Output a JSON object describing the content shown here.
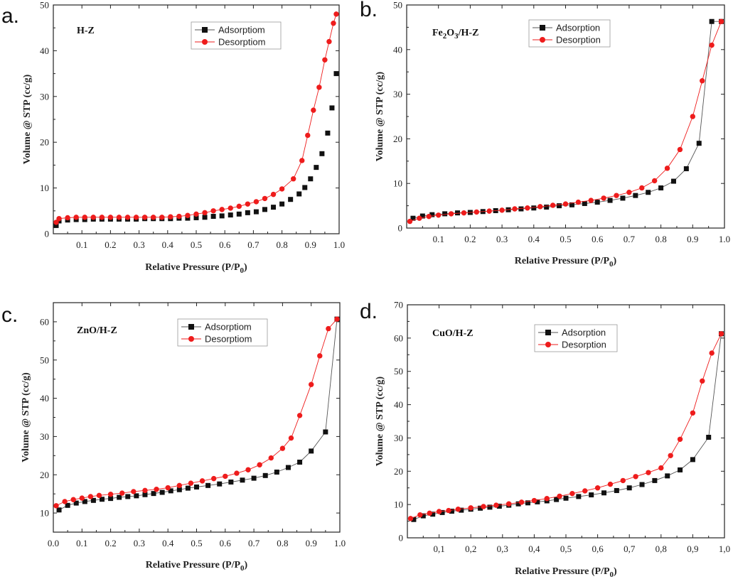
{
  "colors": {
    "adsorption": "#111111",
    "adsorption_line": "#555555",
    "desorption": "#ee1c1c",
    "axis": "#222222"
  },
  "chart_data": [
    {
      "type": "scatter",
      "panel_letter": "a.",
      "sample_label": "H-Z",
      "xlabel": "Relative Pressure (P/P",
      "xlabel_subscript": "0",
      "xlabel_close": ")",
      "ylabel": "Volume @ STP (cc/g)",
      "xlim": [
        0.0,
        1.0
      ],
      "ylim": [
        0,
        50
      ],
      "xticks": [
        "0.1",
        "0.2",
        "0.3",
        "0.4",
        "0.5",
        "0.6",
        "0.7",
        "0.8",
        "0.9",
        "1.0"
      ],
      "xtick_values": [
        0.1,
        0.2,
        0.3,
        0.4,
        0.5,
        0.6,
        0.7,
        0.8,
        0.9,
        1.0
      ],
      "yticks": [
        "0",
        "10",
        "20",
        "30",
        "40",
        "50"
      ],
      "ytick_values": [
        0,
        10,
        20,
        30,
        40,
        50
      ],
      "legend": [
        "Adsorptiom",
        "Desorptiom"
      ],
      "series": [
        {
          "name": "Adsorptiom",
          "marker": "square",
          "connected": false,
          "x": [
            0.01,
            0.02,
            0.05,
            0.08,
            0.11,
            0.14,
            0.17,
            0.2,
            0.23,
            0.26,
            0.29,
            0.32,
            0.35,
            0.38,
            0.41,
            0.44,
            0.47,
            0.5,
            0.53,
            0.56,
            0.59,
            0.62,
            0.65,
            0.68,
            0.71,
            0.74,
            0.77,
            0.8,
            0.83,
            0.86,
            0.88,
            0.9,
            0.92,
            0.94,
            0.96,
            0.975,
            0.99
          ],
          "y": [
            1.8,
            2.8,
            3.0,
            3.1,
            3.1,
            3.2,
            3.2,
            3.2,
            3.2,
            3.2,
            3.2,
            3.3,
            3.3,
            3.3,
            3.3,
            3.4,
            3.4,
            3.5,
            3.6,
            3.8,
            3.9,
            4.1,
            4.3,
            4.6,
            4.8,
            5.3,
            5.8,
            6.5,
            7.5,
            8.7,
            10.1,
            12.0,
            14.5,
            17.5,
            22.0,
            27.5,
            35.0
          ]
        },
        {
          "name": "Desorptiom",
          "marker": "circle",
          "connected": true,
          "x": [
            0.01,
            0.02,
            0.05,
            0.08,
            0.11,
            0.14,
            0.17,
            0.2,
            0.23,
            0.26,
            0.29,
            0.32,
            0.35,
            0.38,
            0.41,
            0.44,
            0.47,
            0.5,
            0.53,
            0.56,
            0.59,
            0.62,
            0.65,
            0.68,
            0.71,
            0.74,
            0.77,
            0.8,
            0.84,
            0.87,
            0.89,
            0.91,
            0.93,
            0.95,
            0.965,
            0.98,
            0.99
          ],
          "y": [
            2.5,
            3.3,
            3.5,
            3.6,
            3.6,
            3.6,
            3.6,
            3.6,
            3.6,
            3.6,
            3.6,
            3.6,
            3.6,
            3.6,
            3.7,
            3.8,
            4.0,
            4.3,
            4.6,
            5.0,
            5.3,
            5.6,
            6.0,
            6.5,
            7.0,
            7.7,
            8.6,
            9.8,
            12.0,
            16.0,
            21.5,
            27.0,
            32.0,
            38.0,
            42.0,
            46.0,
            48.0
          ]
        }
      ]
    },
    {
      "type": "line",
      "panel_letter": "b.",
      "sample_label_main": "Fe",
      "sample_label_sub1": "2",
      "sample_label_mid": "O",
      "sample_label_sub2": "3",
      "sample_label_tail": "/H-Z",
      "xlabel": "Relative Pressure (P/P",
      "xlabel_subscript": "0",
      "xlabel_close": ")",
      "ylabel": "Volume @ STP (cc/g)",
      "xlim": [
        0.0,
        1.0
      ],
      "ylim": [
        0,
        50
      ],
      "xticks": [
        "0.1",
        "0.2",
        "0.3",
        "0.4",
        "0.5",
        "0.6",
        "0.7",
        "0.8",
        "0.9",
        "1.0"
      ],
      "xtick_values": [
        0.1,
        0.2,
        0.3,
        0.4,
        0.5,
        0.6,
        0.7,
        0.8,
        0.9,
        1.0
      ],
      "yticks": [
        "0",
        "10",
        "20",
        "30",
        "40",
        "50"
      ],
      "ytick_values": [
        0,
        10,
        20,
        30,
        40,
        50
      ],
      "legend": [
        "Adsorption",
        "Desorption"
      ],
      "series": [
        {
          "name": "Adsorption",
          "marker": "square",
          "connected": true,
          "x": [
            0.02,
            0.05,
            0.08,
            0.12,
            0.16,
            0.2,
            0.24,
            0.28,
            0.32,
            0.36,
            0.4,
            0.44,
            0.48,
            0.52,
            0.56,
            0.6,
            0.64,
            0.68,
            0.72,
            0.76,
            0.8,
            0.84,
            0.88,
            0.92,
            0.96,
            0.99
          ],
          "y": [
            2.2,
            2.7,
            3.0,
            3.2,
            3.4,
            3.5,
            3.7,
            3.9,
            4.1,
            4.3,
            4.5,
            4.7,
            5.0,
            5.2,
            5.5,
            5.8,
            6.2,
            6.7,
            7.3,
            8.0,
            9.0,
            10.5,
            13.3,
            19.0,
            46.3,
            46.3
          ]
        },
        {
          "name": "Desorption",
          "marker": "circle",
          "connected": true,
          "x": [
            0.01,
            0.04,
            0.07,
            0.1,
            0.14,
            0.18,
            0.22,
            0.26,
            0.3,
            0.34,
            0.38,
            0.42,
            0.46,
            0.5,
            0.54,
            0.58,
            0.62,
            0.66,
            0.7,
            0.74,
            0.78,
            0.82,
            0.86,
            0.9,
            0.93,
            0.96,
            0.99
          ],
          "y": [
            1.5,
            2.2,
            2.6,
            2.9,
            3.2,
            3.4,
            3.6,
            3.8,
            4.0,
            4.3,
            4.5,
            4.8,
            5.1,
            5.4,
            5.8,
            6.2,
            6.7,
            7.3,
            8.0,
            9.0,
            10.6,
            13.4,
            17.6,
            25.0,
            33.0,
            41.0,
            46.3
          ]
        }
      ]
    },
    {
      "type": "line",
      "panel_letter": "c.",
      "sample_label": "ZnO/H-Z",
      "xlabel": "Relative Pressure (P/P",
      "xlabel_subscript": "0",
      "xlabel_close": ")",
      "ylabel": "Volume @ STP (cc/g)",
      "xlim": [
        0.0,
        1.0
      ],
      "ylim": [
        5,
        65
      ],
      "xticks": [
        "0.0",
        "0.1",
        "0.2",
        "0.3",
        "0.4",
        "0.5",
        "0.6",
        "0.7",
        "0.8",
        "0.9",
        "1.0"
      ],
      "xtick_values": [
        0.0,
        0.1,
        0.2,
        0.3,
        0.4,
        0.5,
        0.6,
        0.7,
        0.8,
        0.9,
        1.0
      ],
      "yticks": [
        "10",
        "20",
        "30",
        "40",
        "50",
        "60"
      ],
      "ytick_values": [
        10,
        20,
        30,
        40,
        50,
        60
      ],
      "legend": [
        "Adsorptiom",
        "Desorptiom"
      ],
      "series": [
        {
          "name": "Adsorptiom",
          "marker": "square",
          "connected": true,
          "x": [
            0.02,
            0.05,
            0.08,
            0.11,
            0.14,
            0.17,
            0.2,
            0.23,
            0.26,
            0.29,
            0.32,
            0.35,
            0.38,
            0.41,
            0.44,
            0.47,
            0.5,
            0.54,
            0.58,
            0.62,
            0.66,
            0.7,
            0.74,
            0.78,
            0.82,
            0.86,
            0.9,
            0.95,
            0.99
          ],
          "y": [
            10.8,
            12.0,
            12.6,
            13.0,
            13.3,
            13.6,
            13.8,
            14.1,
            14.3,
            14.5,
            14.8,
            15.1,
            15.4,
            15.8,
            16.1,
            16.5,
            16.8,
            17.2,
            17.6,
            18.1,
            18.6,
            19.1,
            19.8,
            20.7,
            21.9,
            23.3,
            26.2,
            31.2,
            60.7
          ]
        },
        {
          "name": "Desorptiom",
          "marker": "circle",
          "connected": true,
          "x": [
            0.01,
            0.04,
            0.07,
            0.1,
            0.13,
            0.16,
            0.2,
            0.24,
            0.28,
            0.32,
            0.36,
            0.4,
            0.44,
            0.48,
            0.52,
            0.56,
            0.6,
            0.64,
            0.68,
            0.72,
            0.76,
            0.8,
            0.83,
            0.86,
            0.9,
            0.93,
            0.96,
            0.99
          ],
          "y": [
            11.9,
            13.0,
            13.5,
            13.9,
            14.3,
            14.6,
            14.9,
            15.2,
            15.6,
            15.9,
            16.2,
            16.6,
            17.2,
            17.8,
            18.4,
            19.0,
            19.6,
            20.4,
            21.3,
            22.6,
            24.4,
            26.9,
            29.6,
            35.5,
            43.6,
            51.1,
            58.2,
            60.7
          ]
        }
      ]
    },
    {
      "type": "line",
      "panel_letter": "d.",
      "sample_label": "CuO/H-Z",
      "xlabel": "Relative Pressure (P/P",
      "xlabel_subscript": "0",
      "xlabel_close": ")",
      "ylabel": "Volume @ STP (cc/g)",
      "xlim": [
        0.0,
        1.0
      ],
      "ylim": [
        0,
        70
      ],
      "xticks": [
        "0,1",
        "0,2",
        "0,3",
        "0,4",
        "0,5",
        "0,6",
        "0,7",
        "0,8",
        "0,9",
        "1,0"
      ],
      "xtick_values": [
        0.1,
        0.2,
        0.3,
        0.4,
        0.5,
        0.6,
        0.7,
        0.8,
        0.9,
        1.0
      ],
      "yticks": [
        "0",
        "10",
        "20",
        "30",
        "40",
        "50",
        "60",
        "70"
      ],
      "ytick_values": [
        0,
        10,
        20,
        30,
        40,
        50,
        60,
        70
      ],
      "legend": [
        "Adsorption",
        "Desorption"
      ],
      "series": [
        {
          "name": "Adsorption",
          "marker": "square",
          "connected": true,
          "x": [
            0.02,
            0.05,
            0.08,
            0.11,
            0.14,
            0.17,
            0.2,
            0.23,
            0.26,
            0.29,
            0.32,
            0.35,
            0.38,
            0.41,
            0.44,
            0.47,
            0.5,
            0.54,
            0.58,
            0.62,
            0.66,
            0.7,
            0.74,
            0.78,
            0.82,
            0.86,
            0.9,
            0.95,
            0.99
          ],
          "y": [
            5.5,
            6.6,
            7.1,
            7.6,
            8.0,
            8.3,
            8.6,
            8.9,
            9.2,
            9.5,
            9.8,
            10.2,
            10.5,
            10.8,
            11.1,
            11.5,
            11.9,
            12.4,
            12.9,
            13.5,
            14.2,
            15.0,
            16.0,
            17.2,
            18.6,
            20.4,
            23.5,
            30.2,
            61.3
          ]
        },
        {
          "name": "Desorption",
          "marker": "circle",
          "connected": true,
          "x": [
            0.01,
            0.04,
            0.07,
            0.1,
            0.13,
            0.16,
            0.2,
            0.24,
            0.28,
            0.32,
            0.36,
            0.4,
            0.44,
            0.48,
            0.52,
            0.56,
            0.6,
            0.64,
            0.68,
            0.72,
            0.76,
            0.8,
            0.83,
            0.86,
            0.9,
            0.93,
            0.96,
            0.99
          ],
          "y": [
            5.8,
            6.9,
            7.4,
            7.9,
            8.2,
            8.6,
            9.0,
            9.4,
            9.8,
            10.2,
            10.7,
            11.2,
            11.8,
            12.5,
            13.3,
            14.1,
            15.0,
            16.1,
            17.2,
            18.4,
            19.6,
            21.0,
            24.7,
            29.6,
            37.5,
            47.1,
            55.5,
            61.3
          ]
        }
      ]
    }
  ]
}
